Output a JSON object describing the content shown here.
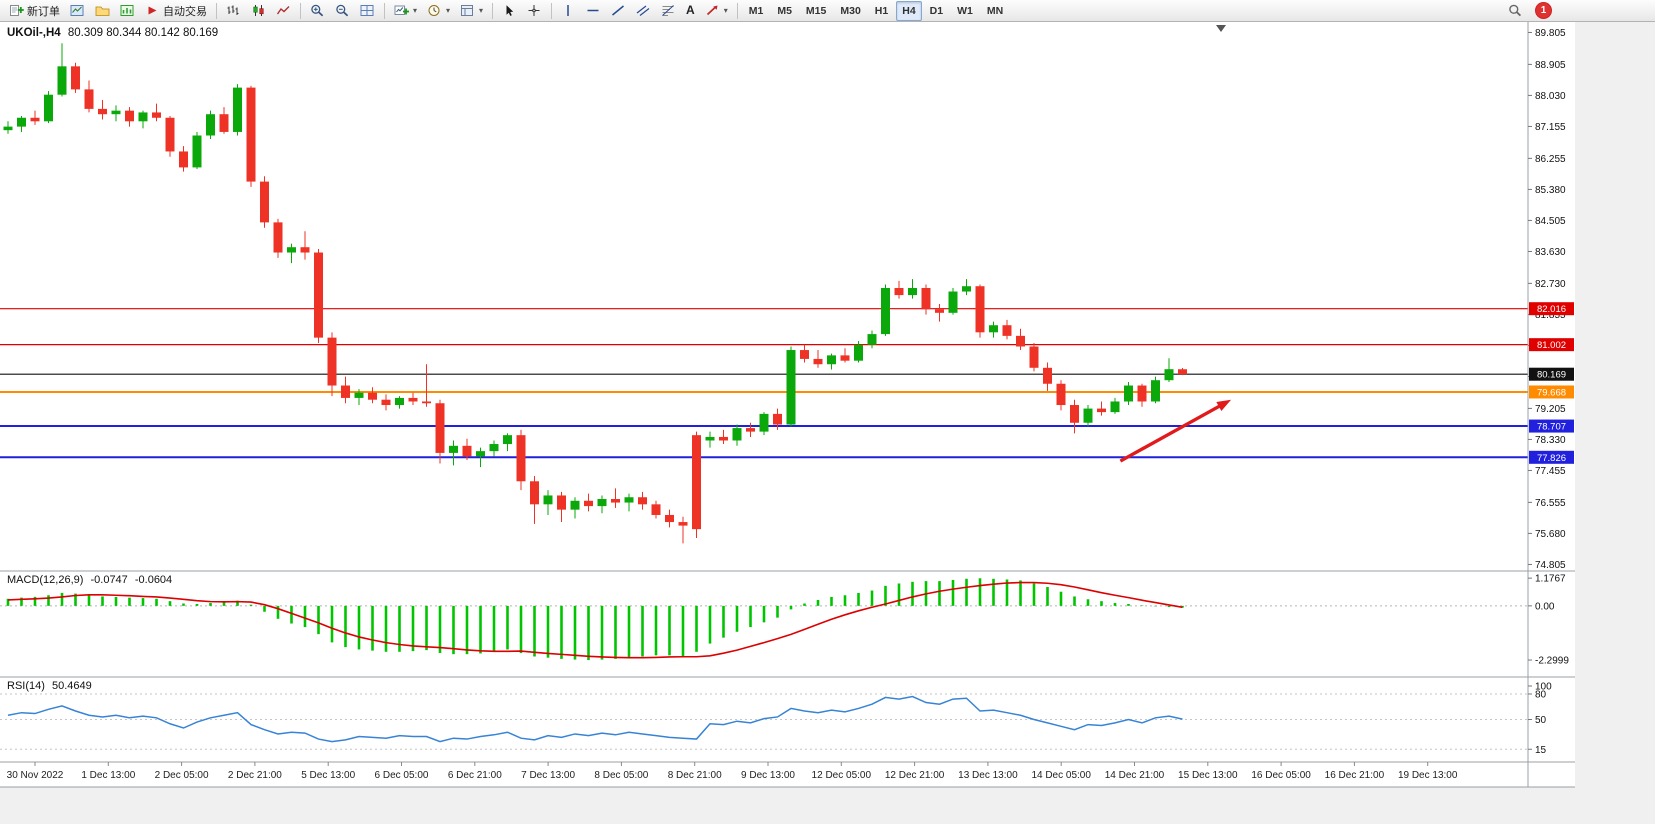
{
  "toolbar": {
    "buttons": [
      {
        "name": "new-order",
        "label": "新订单",
        "icon": "order-icon"
      },
      {
        "name": "chart-windows",
        "icon": "chart-window-icon"
      },
      {
        "name": "profiles",
        "icon": "profile-icon"
      },
      {
        "name": "market-watch",
        "icon": "market-watch-icon"
      },
      {
        "name": "auto-trading",
        "label": "自动交易",
        "icon": "play-icon"
      },
      {
        "sep": true
      },
      {
        "name": "bar-chart-mode",
        "icon": "bar-chart-icon"
      },
      {
        "name": "candlestick-mode",
        "icon": "candlestick-icon"
      },
      {
        "name": "line-chart-mode",
        "icon": "line-chart-icon"
      },
      {
        "sep": true
      },
      {
        "name": "zoom-in",
        "icon": "zoom-in-icon"
      },
      {
        "name": "zoom-out",
        "icon": "zoom-out-icon"
      },
      {
        "name": "tile-windows",
        "icon": "tile-windows-icon"
      },
      {
        "sep": true
      },
      {
        "name": "new-chart",
        "icon": "new-chart-icon",
        "dropdown": true
      },
      {
        "name": "periods",
        "icon": "clock-icon",
        "dropdown": true
      },
      {
        "name": "templates",
        "icon": "template-icon",
        "dropdown": true
      },
      {
        "sep": true
      },
      {
        "name": "cursor",
        "icon": "cursor-icon"
      },
      {
        "name": "crosshair",
        "icon": "crosshair-icon"
      },
      {
        "sep": true
      },
      {
        "name": "vertical-line",
        "icon": "vline-icon"
      },
      {
        "name": "horizontal-line",
        "icon": "hline-icon"
      },
      {
        "name": "trendline",
        "icon": "trendline-icon"
      },
      {
        "name": "equidistant-channel",
        "icon": "channel-icon"
      },
      {
        "name": "fibonacci",
        "icon": "fibonacci-icon"
      },
      {
        "name": "text-label",
        "icon": "text-icon"
      },
      {
        "name": "arrow-objects",
        "icon": "arrow-objects-icon",
        "dropdown": true
      },
      {
        "sep": true
      }
    ],
    "timeframes": [
      "M1",
      "M5",
      "M15",
      "M30",
      "H1",
      "H4",
      "D1",
      "W1",
      "MN"
    ],
    "active_timeframe": "H4",
    "notification_badge": "1"
  },
  "chart": {
    "symbol_period": "UKOil-,H4",
    "ohlc_text": "80.309 80.344 80.142 80.169",
    "macd_name": "MACD(12,26,9)",
    "macd_value": "-0.0747",
    "macd_signal_value": "-0.0604",
    "rsi_name": "RSI(14)",
    "rsi_value": "50.4649"
  },
  "chart_data": {
    "type": "candlestick",
    "symbol": "UKOil-",
    "period": "H4",
    "price_range": [
      74.62,
      90.1
    ],
    "price_ticks": [
      "89.805",
      "88.905",
      "88.030",
      "87.155",
      "86.255",
      "85.380",
      "84.505",
      "83.630",
      "82.730",
      "81.855",
      "80.980",
      "80.105",
      "79.205",
      "78.330",
      "77.455",
      "76.555",
      "75.680",
      "74.805"
    ],
    "time_labels": [
      "30 Nov 2022",
      "1 Dec 13:00",
      "2 Dec 05:00",
      "2 Dec 21:00",
      "5 Dec 13:00",
      "6 Dec 05:00",
      "6 Dec 21:00",
      "7 Dec 13:00",
      "8 Dec 05:00",
      "8 Dec 21:00",
      "9 Dec 13:00",
      "12 Dec 05:00",
      "12 Dec 21:00",
      "13 Dec 13:00",
      "14 Dec 05:00",
      "14 Dec 21:00",
      "15 Dec 13:00",
      "16 Dec 05:00",
      "16 Dec 21:00",
      "19 Dec 13:00"
    ],
    "colors": {
      "up": "#0aa80a",
      "down": "#ee3326"
    },
    "candles": [
      [
        87.05,
        87.3,
        86.95,
        87.15
      ],
      [
        87.15,
        87.45,
        87.0,
        87.4
      ],
      [
        87.4,
        87.6,
        87.2,
        87.3
      ],
      [
        87.3,
        88.15,
        87.25,
        88.05
      ],
      [
        88.05,
        89.5,
        88.0,
        88.85
      ],
      [
        88.85,
        88.95,
        88.1,
        88.2
      ],
      [
        88.2,
        88.45,
        87.55,
        87.65
      ],
      [
        87.65,
        87.9,
        87.35,
        87.5
      ],
      [
        87.5,
        87.75,
        87.3,
        87.6
      ],
      [
        87.6,
        87.7,
        87.15,
        87.3
      ],
      [
        87.3,
        87.6,
        87.1,
        87.55
      ],
      [
        87.55,
        87.8,
        87.3,
        87.4
      ],
      [
        87.4,
        87.45,
        86.3,
        86.45
      ],
      [
        86.45,
        86.6,
        85.88,
        86.0
      ],
      [
        86.0,
        87.0,
        85.95,
        86.9
      ],
      [
        86.9,
        87.6,
        86.8,
        87.5
      ],
      [
        87.5,
        87.7,
        86.95,
        87.0
      ],
      [
        87.0,
        88.35,
        86.9,
        88.25
      ],
      [
        88.25,
        88.3,
        85.45,
        85.6
      ],
      [
        85.6,
        85.75,
        84.3,
        84.45
      ],
      [
        84.45,
        84.55,
        83.45,
        83.6
      ],
      [
        83.6,
        83.85,
        83.3,
        83.75
      ],
      [
        83.75,
        84.2,
        83.4,
        83.6
      ],
      [
        83.6,
        83.7,
        81.05,
        81.2
      ],
      [
        81.2,
        81.35,
        79.55,
        79.85
      ],
      [
        79.85,
        80.1,
        79.35,
        79.5
      ],
      [
        79.5,
        79.75,
        79.3,
        79.65
      ],
      [
        79.65,
        79.8,
        79.35,
        79.45
      ],
      [
        79.45,
        79.6,
        79.15,
        79.3
      ],
      [
        79.3,
        79.55,
        79.2,
        79.5
      ],
      [
        79.5,
        79.65,
        79.3,
        79.4
      ],
      [
        79.4,
        80.45,
        79.25,
        79.35
      ],
      [
        79.35,
        79.45,
        77.65,
        77.95
      ],
      [
        77.95,
        78.3,
        77.6,
        78.15
      ],
      [
        78.15,
        78.35,
        77.75,
        77.85
      ],
      [
        77.85,
        78.1,
        77.55,
        78.0
      ],
      [
        78.0,
        78.3,
        77.85,
        78.2
      ],
      [
        78.2,
        78.5,
        78.0,
        78.45
      ],
      [
        78.45,
        78.6,
        76.9,
        77.15
      ],
      [
        77.15,
        77.3,
        75.95,
        76.5
      ],
      [
        76.5,
        76.9,
        76.2,
        76.75
      ],
      [
        76.75,
        76.85,
        76.0,
        76.35
      ],
      [
        76.35,
        76.7,
        76.1,
        76.6
      ],
      [
        76.6,
        76.8,
        76.3,
        76.45
      ],
      [
        76.45,
        76.75,
        76.25,
        76.65
      ],
      [
        76.65,
        76.95,
        76.4,
        76.55
      ],
      [
        76.55,
        76.8,
        76.3,
        76.7
      ],
      [
        76.7,
        76.85,
        76.35,
        76.5
      ],
      [
        76.5,
        76.6,
        76.1,
        76.2
      ],
      [
        76.2,
        76.35,
        75.85,
        76.0
      ],
      [
        76.0,
        76.15,
        75.4,
        75.9
      ],
      [
        78.45,
        78.55,
        75.55,
        75.8
      ],
      [
        78.3,
        78.55,
        78.1,
        78.4
      ],
      [
        78.4,
        78.6,
        78.2,
        78.3
      ],
      [
        78.3,
        78.75,
        78.15,
        78.65
      ],
      [
        78.65,
        78.8,
        78.4,
        78.55
      ],
      [
        78.55,
        79.1,
        78.45,
        79.05
      ],
      [
        79.05,
        79.2,
        78.6,
        78.75
      ],
      [
        78.75,
        80.95,
        78.7,
        80.85
      ],
      [
        80.85,
        81.0,
        80.5,
        80.6
      ],
      [
        80.6,
        80.85,
        80.35,
        80.45
      ],
      [
        80.45,
        80.75,
        80.3,
        80.7
      ],
      [
        80.7,
        80.9,
        80.5,
        80.55
      ],
      [
        80.55,
        81.1,
        80.5,
        81.0
      ],
      [
        81.0,
        81.4,
        80.9,
        81.3
      ],
      [
        81.3,
        82.7,
        81.25,
        82.6
      ],
      [
        82.6,
        82.8,
        82.3,
        82.4
      ],
      [
        82.4,
        82.85,
        82.3,
        82.6
      ],
      [
        82.6,
        82.7,
        81.85,
        82.0
      ],
      [
        82.0,
        82.15,
        81.65,
        81.9
      ],
      [
        81.9,
        82.6,
        81.85,
        82.5
      ],
      [
        82.5,
        82.85,
        82.4,
        82.65
      ],
      [
        82.65,
        82.7,
        81.2,
        81.35
      ],
      [
        81.35,
        81.65,
        81.2,
        81.55
      ],
      [
        81.55,
        81.7,
        81.15,
        81.25
      ],
      [
        81.25,
        81.45,
        80.85,
        80.95
      ],
      [
        80.95,
        81.05,
        80.25,
        80.35
      ],
      [
        80.35,
        80.5,
        79.7,
        79.9
      ],
      [
        79.9,
        80.0,
        79.15,
        79.3
      ],
      [
        79.3,
        79.45,
        78.5,
        78.8
      ],
      [
        78.8,
        79.3,
        78.7,
        79.2
      ],
      [
        79.2,
        79.4,
        79.0,
        79.1
      ],
      [
        79.1,
        79.5,
        79.05,
        79.4
      ],
      [
        79.4,
        79.95,
        79.3,
        79.85
      ],
      [
        79.85,
        79.9,
        79.25,
        79.4
      ],
      [
        79.4,
        80.1,
        79.35,
        80.0
      ],
      [
        80.0,
        80.62,
        79.95,
        80.31
      ],
      [
        80.309,
        80.344,
        80.142,
        80.169
      ]
    ],
    "hlines": [
      {
        "label": "82.016",
        "price": 82.016,
        "color": "#e00000",
        "width": 1.2
      },
      {
        "label": "81.002",
        "price": 81.002,
        "color": "#e00000",
        "width": 1.2
      },
      {
        "label": "80.169",
        "price": 80.169,
        "color": "#111111",
        "width": 1.1
      },
      {
        "label": "79.668",
        "price": 79.668,
        "color": "#ff8c00",
        "width": 2
      },
      {
        "label": "78.707",
        "price": 78.707,
        "color": "#2020dd",
        "width": 2
      },
      {
        "label": "77.826",
        "price": 77.826,
        "color": "#2020dd",
        "width": 2
      }
    ],
    "arrow": {
      "from_index": 82.4,
      "from_price": 77.72,
      "to_index": 90.6,
      "to_price": 79.45,
      "color": "#e11b1b"
    },
    "macd": {
      "range": [
        1.48,
        -3.02
      ],
      "scale_labels": [
        "1.1767",
        "0.00",
        "-2.2999"
      ],
      "hist_color": "#00c400",
      "signal_color": "#dd0000",
      "values": [
        0.3,
        0.35,
        0.38,
        0.45,
        0.55,
        0.52,
        0.45,
        0.4,
        0.38,
        0.35,
        0.33,
        0.3,
        0.2,
        0.1,
        0.08,
        0.12,
        0.15,
        0.22,
        0.05,
        -0.25,
        -0.55,
        -0.75,
        -0.9,
        -1.2,
        -1.55,
        -1.75,
        -1.85,
        -1.9,
        -1.95,
        -1.95,
        -1.92,
        -1.88,
        -2.0,
        -2.05,
        -2.05,
        -2.02,
        -1.95,
        -1.85,
        -2.0,
        -2.15,
        -2.2,
        -2.25,
        -2.28,
        -2.3,
        -2.28,
        -2.25,
        -2.2,
        -2.15,
        -2.1,
        -2.1,
        -2.15,
        -1.95,
        -1.6,
        -1.35,
        -1.1,
        -0.9,
        -0.7,
        -0.5,
        -0.15,
        0.1,
        0.25,
        0.38,
        0.45,
        0.55,
        0.65,
        0.85,
        0.95,
        1.02,
        1.05,
        1.05,
        1.1,
        1.15,
        1.17,
        1.15,
        1.12,
        1.08,
        0.95,
        0.8,
        0.6,
        0.4,
        0.28,
        0.2,
        0.12,
        0.08,
        0.02,
        -0.02,
        -0.05,
        -0.0747
      ],
      "signal": [
        0.25,
        0.28,
        0.3,
        0.33,
        0.38,
        0.44,
        0.47,
        0.47,
        0.45,
        0.43,
        0.4,
        0.38,
        0.33,
        0.28,
        0.22,
        0.18,
        0.17,
        0.18,
        0.16,
        0.05,
        -0.12,
        -0.32,
        -0.52,
        -0.72,
        -0.95,
        -1.15,
        -1.32,
        -1.45,
        -1.56,
        -1.64,
        -1.7,
        -1.74,
        -1.77,
        -1.82,
        -1.87,
        -1.91,
        -1.93,
        -1.93,
        -1.92,
        -1.97,
        -2.02,
        -2.06,
        -2.1,
        -2.14,
        -2.17,
        -2.19,
        -2.2,
        -2.2,
        -2.19,
        -2.17,
        -2.16,
        -2.16,
        -2.12,
        -2.01,
        -1.88,
        -1.72,
        -1.56,
        -1.39,
        -1.21,
        -1.0,
        -0.78,
        -0.57,
        -0.38,
        -0.21,
        -0.06,
        0.08,
        0.23,
        0.38,
        0.51,
        0.62,
        0.71,
        0.79,
        0.86,
        0.92,
        0.97,
        0.99,
        0.99,
        0.96,
        0.9,
        0.8,
        0.68,
        0.56,
        0.45,
        0.35,
        0.24,
        0.14,
        0.04,
        -0.0604
      ]
    },
    "rsi": {
      "range": [
        0,
        100
      ],
      "levels": [
        80,
        50,
        15
      ],
      "scale_labels": [
        "100",
        "80",
        "50",
        "15"
      ],
      "color": "#3783d6",
      "values": [
        55,
        58,
        57,
        62,
        66,
        60,
        55,
        53,
        55,
        52,
        54,
        52,
        45,
        40,
        47,
        52,
        55,
        58,
        44,
        38,
        33,
        35,
        34,
        27,
        24,
        26,
        30,
        29,
        28,
        31,
        30,
        30,
        24,
        28,
        27,
        30,
        32,
        35,
        28,
        26,
        31,
        29,
        33,
        31,
        34,
        32,
        35,
        33,
        31,
        29,
        28,
        27,
        45,
        44,
        48,
        46,
        51,
        53,
        63,
        60,
        58,
        61,
        59,
        63,
        68,
        76,
        74,
        77,
        70,
        68,
        74,
        75,
        60,
        61,
        58,
        55,
        50,
        46,
        42,
        38,
        44,
        43,
        46,
        50,
        46,
        52,
        54,
        50.4649
      ]
    }
  }
}
